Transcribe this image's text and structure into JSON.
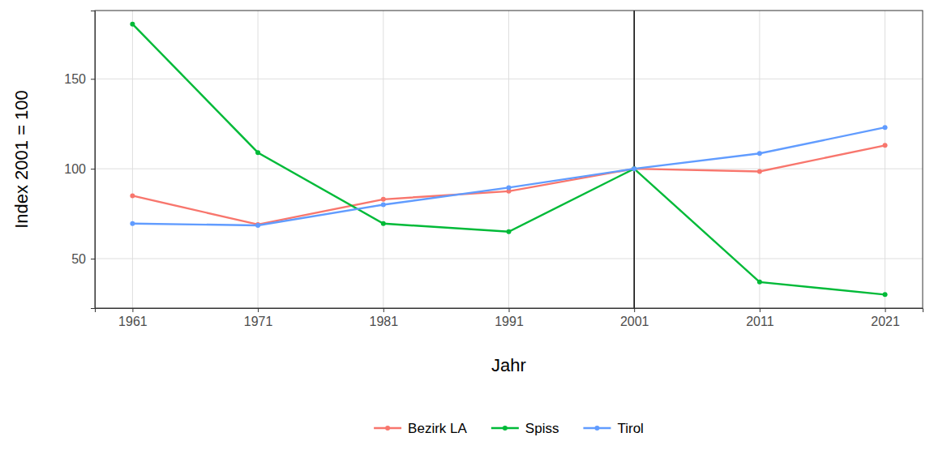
{
  "chart_data": {
    "type": "line",
    "x_label": "Jahr",
    "y_label": "Index 2001 = 100",
    "x": [
      1961,
      1971,
      1981,
      1991,
      2001,
      2011,
      2021
    ],
    "series": [
      {
        "name": "Bezirk LA",
        "color": "#F8766D",
        "values": [
          85,
          69,
          83,
          87.5,
          100,
          98.5,
          113
        ]
      },
      {
        "name": "Spiss",
        "color": "#00BA38",
        "values": [
          180.5,
          109,
          69.5,
          65,
          100,
          37,
          30
        ]
      },
      {
        "name": "Tirol",
        "color": "#619CFF",
        "values": [
          69.5,
          68.5,
          80,
          89.5,
          100,
          108.5,
          123
        ]
      }
    ],
    "xlim": [
      1958,
      2024
    ],
    "xticks": [
      1961,
      1971,
      1981,
      1991,
      2001,
      2011,
      2021
    ],
    "ylim": [
      22.5,
      188
    ],
    "yticks": [
      50,
      100,
      150
    ],
    "vline": 2001,
    "grid": true,
    "legend": "bottom",
    "marker": "circle"
  }
}
